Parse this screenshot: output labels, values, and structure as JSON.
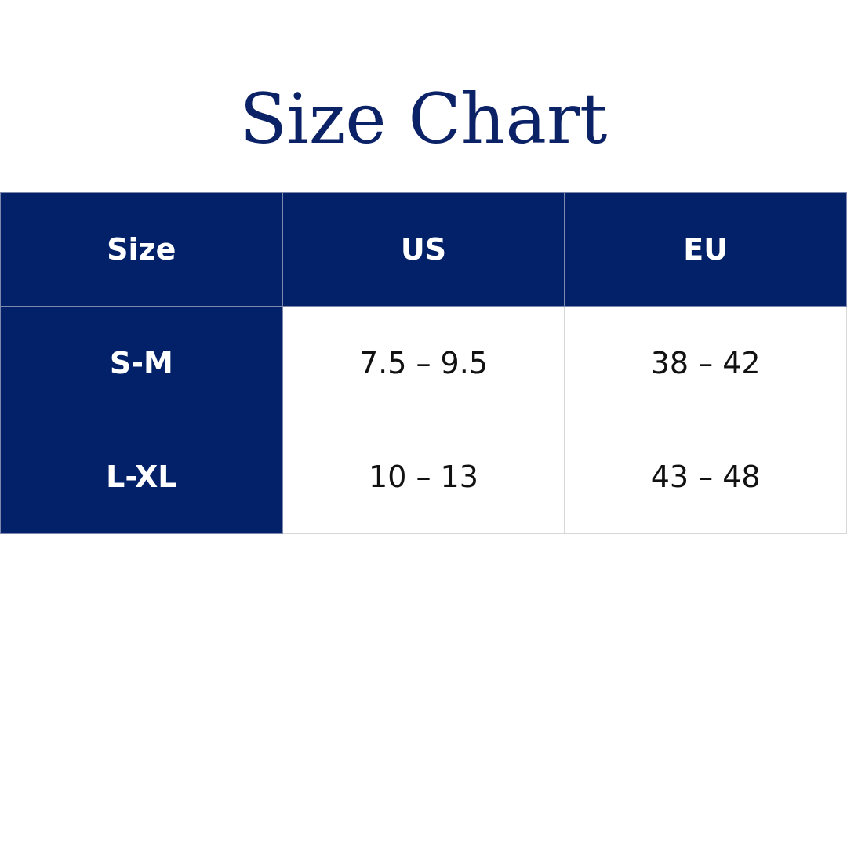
{
  "title": "Size Chart",
  "table": {
    "header": [
      "Size",
      "US",
      "EU"
    ],
    "rows": [
      [
        "S-M",
        "7.5 – 9.5",
        "38 – 42"
      ],
      [
        "L-XL",
        "10 – 13",
        "43 – 48"
      ]
    ]
  }
}
